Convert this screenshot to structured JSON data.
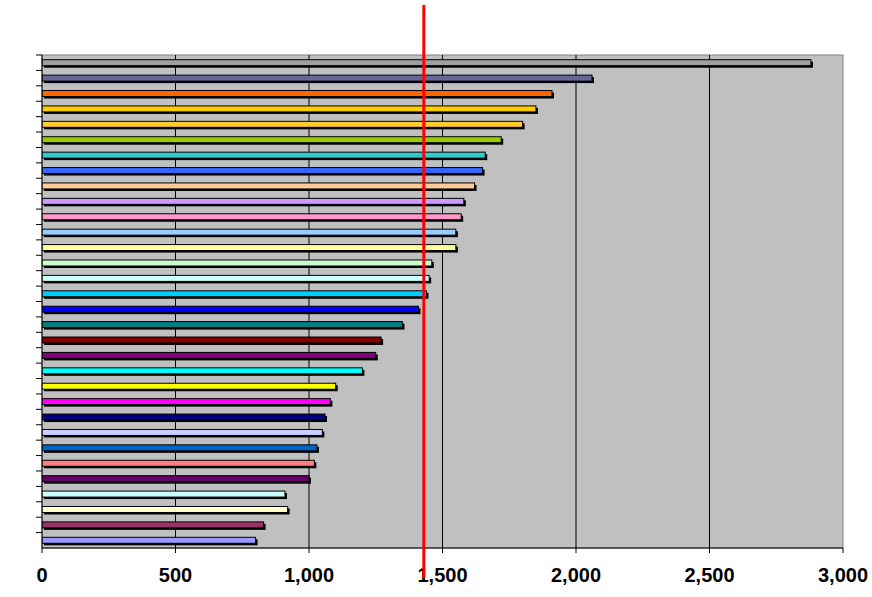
{
  "chart_data": {
    "type": "bar",
    "orientation": "horizontal",
    "categories": [
      null,
      null,
      null,
      null,
      null,
      null,
      null,
      null,
      null,
      null,
      null,
      null,
      null,
      null,
      null,
      null,
      null,
      null,
      null,
      null,
      null,
      null,
      null,
      null,
      null,
      null,
      null,
      null,
      null,
      null,
      null,
      null
    ],
    "values": [
      2880,
      2060,
      1910,
      1850,
      1800,
      1720,
      1660,
      1650,
      1620,
      1580,
      1570,
      1550,
      1550,
      1460,
      1450,
      1440,
      1410,
      1350,
      1270,
      1250,
      1200,
      1100,
      1080,
      1060,
      1050,
      1030,
      1020,
      1000,
      910,
      920,
      830,
      800
    ],
    "colors": [
      "#a0a0a0",
      "#666699",
      "#ff6600",
      "#ffcc00",
      "#ffcc33",
      "#99cc00",
      "#33cccc",
      "#3366ff",
      "#ffcc99",
      "#cc99ff",
      "#ff99cc",
      "#99ccff",
      "#ffff99",
      "#ccffcc",
      "#ccffff",
      "#00ccff",
      "#0000ff",
      "#008080",
      "#800000",
      "#800080",
      "#00ffff",
      "#ffff00",
      "#ff00ff",
      "#000080",
      "#ccccff",
      "#0066cc",
      "#ff8080",
      "#660066",
      "#ccffff",
      "#ffffcc",
      "#993366",
      "#9999ff"
    ],
    "xlim": [
      0,
      3000
    ],
    "xticks": [
      0,
      500,
      {
        "value": 1000,
        "label": "1,000"
      },
      {
        "value": 1500,
        "label": "1,500"
      },
      {
        "value": 2000,
        "label": "2,000"
      },
      {
        "value": 2500,
        "label": "2,500"
      },
      {
        "value": 3000,
        "label": "3,000"
      }
    ],
    "grid": true,
    "tick_labels": "x",
    "reference_line": {
      "value": 1430,
      "color": "#ff0000"
    }
  }
}
